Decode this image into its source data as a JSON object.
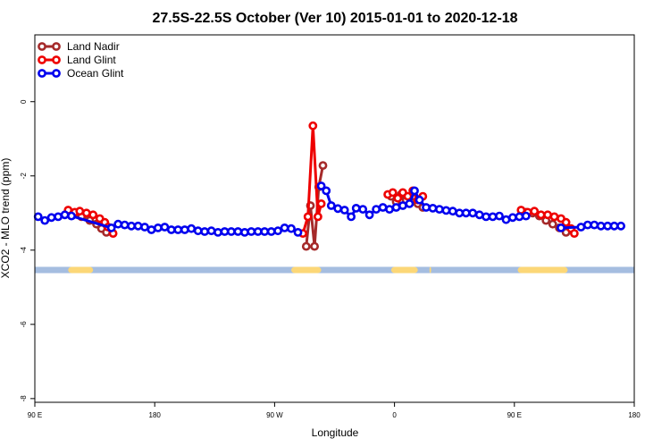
{
  "chart_data": {
    "type": "line",
    "title": "27.5S-22.5S October (Ver 10)   2015-01-01 to 2020-12-18",
    "xlabel": "Longitude",
    "ylabel": "XCO2 - MLO trend (ppm)",
    "xlim": [
      90,
      450
    ],
    "ylim": [
      -8.1,
      1.8
    ],
    "x_ticks": [
      {
        "value": 90,
        "label": "90 E"
      },
      {
        "value": 162,
        "label": "180"
      },
      {
        "value": 234,
        "label": "90 W"
      },
      {
        "value": 306,
        "label": "0"
      },
      {
        "value": 378,
        "label": "90 E"
      },
      {
        "value": 450,
        "label": "180"
      }
    ],
    "y_ticks": [
      {
        "value": 0,
        "label": "0"
      },
      {
        "value": -2,
        "label": "-2"
      },
      {
        "value": -4,
        "label": "-4"
      },
      {
        "value": -6,
        "label": "-6"
      },
      {
        "value": -8,
        "label": "-8"
      }
    ],
    "grid": false,
    "legend_position": "top-left",
    "land_strip": {
      "y_range": [
        -4.62,
        -4.45
      ],
      "ocean_color": "#a5bde0",
      "land_color": "#fcd777",
      "land_x_ranges": [
        [
          110,
          125
        ],
        [
          244,
          262
        ],
        [
          304,
          320
        ],
        [
          327,
          328
        ],
        [
          380,
          410
        ]
      ]
    },
    "series": [
      {
        "name": "Land Nadir",
        "color": "#a52a2a",
        "segments": [
          [
            [
              113,
              -3.05
            ],
            [
              118,
              -3.1
            ],
            [
              123,
              -3.2
            ],
            [
              127,
              -3.3
            ],
            [
              130,
              -3.42
            ],
            [
              133,
              -3.52
            ]
          ],
          [
            [
              253,
              -3.9
            ],
            [
              255.5,
              -2.8
            ],
            [
              258,
              -3.9
            ],
            [
              260.5,
              -2.3
            ],
            [
              263,
              -1.72
            ]
          ],
          [
            [
              304,
              -2.55
            ],
            [
              307,
              -2.7
            ],
            [
              310,
              -2.5
            ],
            [
              313,
              -2.65
            ],
            [
              316,
              -2.7
            ],
            [
              320,
              -2.75
            ],
            [
              323,
              -2.85
            ]
          ],
          [
            [
              385,
              -2.98
            ],
            [
              389,
              -3.0
            ],
            [
              393,
              -3.08
            ],
            [
              397,
              -3.2
            ],
            [
              401,
              -3.3
            ],
            [
              405,
              -3.4
            ],
            [
              409,
              -3.52
            ]
          ]
        ]
      },
      {
        "name": "Land Glint",
        "color": "#ee0000",
        "segments": [
          [
            [
              110,
              -2.92
            ],
            [
              114,
              -2.98
            ],
            [
              117,
              -2.95
            ],
            [
              121,
              -3.0
            ],
            [
              125,
              -3.05
            ],
            [
              129,
              -3.15
            ],
            [
              132,
              -3.25
            ],
            [
              134,
              -3.38
            ],
            [
              137,
              -3.55
            ]
          ],
          [
            [
              251,
              -3.55
            ],
            [
              254,
              -3.1
            ],
            [
              257,
              -0.65
            ],
            [
              260,
              -3.1
            ],
            [
              262,
              -2.75
            ]
          ],
          [
            [
              302,
              -2.5
            ],
            [
              305,
              -2.45
            ],
            [
              308,
              -2.6
            ],
            [
              311,
              -2.45
            ],
            [
              314,
              -2.55
            ],
            [
              317,
              -2.4
            ],
            [
              320,
              -2.65
            ],
            [
              323,
              -2.55
            ]
          ],
          [
            [
              382,
              -2.92
            ],
            [
              386,
              -2.98
            ],
            [
              390,
              -2.95
            ],
            [
              394,
              -3.05
            ],
            [
              398,
              -3.05
            ],
            [
              402,
              -3.1
            ],
            [
              406,
              -3.15
            ],
            [
              409,
              -3.25
            ],
            [
              412,
              -3.42
            ],
            [
              414,
              -3.55
            ]
          ]
        ]
      },
      {
        "name": "Ocean Glint",
        "color": "#0000ee",
        "segments": [
          [
            [
              92,
              -3.1
            ],
            [
              96,
              -3.2
            ],
            [
              100,
              -3.12
            ],
            [
              104,
              -3.1
            ],
            [
              108,
              -3.05
            ],
            [
              112,
              -3.08
            ],
            [
              136,
              -3.4
            ],
            [
              140,
              -3.3
            ],
            [
              144,
              -3.32
            ],
            [
              148,
              -3.35
            ],
            [
              152,
              -3.35
            ],
            [
              156,
              -3.38
            ],
            [
              160,
              -3.45
            ],
            [
              164,
              -3.4
            ],
            [
              168,
              -3.38
            ],
            [
              172,
              -3.45
            ],
            [
              176,
              -3.45
            ],
            [
              180,
              -3.45
            ],
            [
              184,
              -3.42
            ],
            [
              188,
              -3.48
            ],
            [
              192,
              -3.5
            ],
            [
              196,
              -3.48
            ],
            [
              200,
              -3.52
            ],
            [
              204,
              -3.5
            ],
            [
              208,
              -3.5
            ],
            [
              212,
              -3.5
            ],
            [
              216,
              -3.52
            ],
            [
              220,
              -3.5
            ],
            [
              224,
              -3.5
            ],
            [
              228,
              -3.5
            ],
            [
              232,
              -3.5
            ],
            [
              236,
              -3.48
            ],
            [
              240,
              -3.4
            ],
            [
              244,
              -3.42
            ],
            [
              248,
              -3.52
            ]
          ],
          [
            [
              262,
              -2.27
            ],
            [
              265,
              -2.4
            ],
            [
              268,
              -2.8
            ],
            [
              272,
              -2.88
            ],
            [
              276,
              -2.92
            ],
            [
              280,
              -3.1
            ],
            [
              283,
              -2.87
            ],
            [
              287,
              -2.9
            ],
            [
              291,
              -3.05
            ],
            [
              295,
              -2.9
            ],
            [
              299,
              -2.85
            ],
            [
              303,
              -2.9
            ],
            [
              307,
              -2.85
            ],
            [
              311,
              -2.8
            ],
            [
              315,
              -2.75
            ],
            [
              318,
              -2.4
            ],
            [
              321,
              -2.65
            ],
            [
              325,
              -2.85
            ],
            [
              329,
              -2.87
            ],
            [
              333,
              -2.9
            ],
            [
              337,
              -2.93
            ],
            [
              341,
              -2.95
            ],
            [
              345,
              -3.0
            ],
            [
              349,
              -3.0
            ],
            [
              353,
              -3.0
            ],
            [
              357,
              -3.05
            ],
            [
              361,
              -3.1
            ],
            [
              365,
              -3.1
            ],
            [
              369,
              -3.08
            ],
            [
              373,
              -3.18
            ],
            [
              377,
              -3.12
            ],
            [
              381,
              -3.1
            ],
            [
              385,
              -3.08
            ]
          ],
          [
            [
              406,
              -3.4
            ],
            [
              418,
              -3.38
            ],
            [
              422,
              -3.32
            ],
            [
              426,
              -3.32
            ],
            [
              430,
              -3.35
            ],
            [
              434,
              -3.35
            ],
            [
              438,
              -3.35
            ],
            [
              442,
              -3.35
            ]
          ]
        ]
      }
    ]
  }
}
